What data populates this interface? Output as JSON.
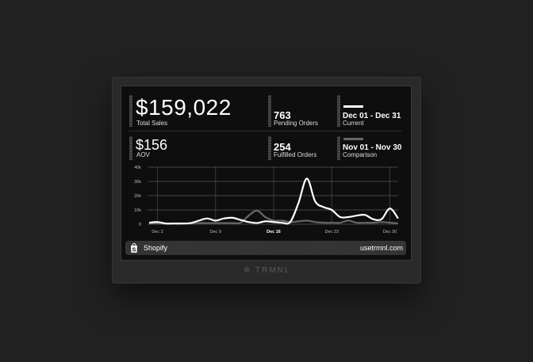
{
  "metrics": {
    "total_sales": {
      "value": "$159,022",
      "label": "Total Sales"
    },
    "aov": {
      "value": "$156",
      "label": "AOV"
    },
    "pending_orders": {
      "value": "763",
      "label": "Pending Orders"
    },
    "fulfilled_orders": {
      "value": "254",
      "label": "Fulfilled Orders"
    },
    "current": {
      "range": "Dec 01 - Dec 31",
      "label": "Current"
    },
    "comparison": {
      "range": "Nov 01 - Nov 30",
      "label": "Comparison"
    }
  },
  "colors": {
    "current": "#ffffff",
    "comparison": "#666666",
    "background": "#0e0e0e"
  },
  "chart_data": {
    "type": "line",
    "x": [
      1,
      2,
      3,
      4,
      5,
      6,
      7,
      8,
      9,
      10,
      11,
      12,
      13,
      14,
      15,
      16,
      17,
      18,
      19,
      20,
      21,
      22,
      23,
      24,
      25,
      26,
      27,
      28,
      29,
      30,
      31
    ],
    "x_ticks": [
      2,
      9,
      16,
      23,
      30
    ],
    "x_tick_labels": [
      "Dec 2",
      "Dec 9",
      "Dec 16",
      "Dec 23",
      "Dec 30"
    ],
    "y_ticks": [
      0,
      10000,
      20000,
      30000,
      40000
    ],
    "y_tick_labels": [
      "0",
      "10k",
      "20k",
      "30k",
      "40k"
    ],
    "ylim": [
      0,
      40000
    ],
    "grid": true,
    "series": [
      {
        "values": [
          1000,
          1500,
          500,
          500,
          500,
          800,
          2500,
          4000,
          2500,
          4000,
          4500,
          3000,
          1500,
          800,
          2000,
          1500,
          1000,
          1500,
          15000,
          32000,
          16000,
          12000,
          10000,
          5000,
          5000,
          6000,
          6500,
          3500,
          3500,
          11000,
          4000
        ]
      },
      {
        "values": [
          500,
          500,
          300,
          300,
          300,
          500,
          800,
          800,
          800,
          800,
          800,
          1000,
          6000,
          9500,
          5000,
          2500,
          2500,
          1500,
          2000,
          2500,
          1500,
          1000,
          1000,
          1000,
          2500,
          1000,
          1000,
          1000,
          1500,
          1000,
          500
        ]
      }
    ]
  },
  "footer": {
    "source": "Shopify",
    "url": "usetrmnl.com",
    "source_icon": "shopify-bag-icon"
  },
  "device": {
    "brand": "TRMNL"
  }
}
